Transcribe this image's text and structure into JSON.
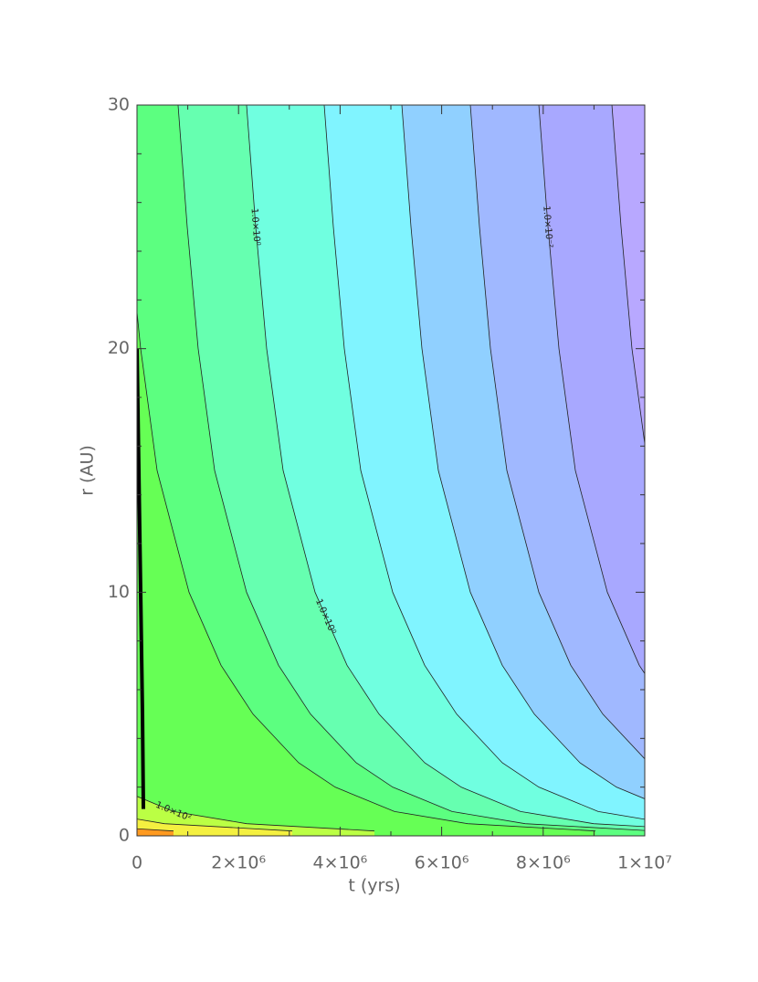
{
  "chart_data": {
    "type": "contour",
    "xlabel": "t (yrs)",
    "ylabel": "r (AU)",
    "xlim": [
      0,
      10000000
    ],
    "ylim": [
      0,
      30
    ],
    "xticks": [
      0,
      {
        "value": 2000000,
        "label": "2×10⁶"
      },
      {
        "value": 4000000,
        "label": "4×10⁶"
      },
      {
        "value": 6000000,
        "label": "6×10⁶"
      },
      {
        "value": 8000000,
        "label": "8×10⁶"
      },
      {
        "value": 10000000,
        "label": "1×10⁷"
      }
    ],
    "xminorticks": [
      1000000,
      3000000,
      5000000,
      7000000,
      9000000
    ],
    "yticks": [
      0,
      10,
      20,
      30
    ],
    "yminorticks": [
      2,
      4,
      6,
      8,
      12,
      14,
      16,
      18,
      22,
      24,
      26,
      28
    ],
    "line_color": "#222222",
    "fill_colors": [
      "#ff9a20",
      "#f4f040",
      "#bbff44",
      "#66ff55",
      "#5cff80",
      "#66ffb0",
      "#70ffe0",
      "#80f4ff",
      "#90d0ff",
      "#a0b8ff",
      "#a8a8ff",
      "#b8a8ff"
    ],
    "contours": [
      {
        "x": [
          0,
          719000
        ],
        "y": [
          0.29,
          0.2
        ]
      },
      {
        "x": [
          0,
          540000,
          3058000
        ],
        "y": [
          0.69,
          0.5,
          0.2
        ]
      },
      {
        "label": "1.0×10²",
        "x": [
          0,
          719000,
          2158000,
          4676000
        ],
        "y": [
          1.62,
          1,
          0.5,
          0.2
        ]
      },
      {
        "x": [
          0,
          72000,
          396000,
          1025000,
          1655000,
          2284000,
          3184000,
          3903000,
          5072000,
          6511000,
          9029000
        ],
        "y": [
          21.5,
          20,
          15,
          10,
          7,
          5,
          3,
          2,
          1,
          0.5,
          0.2
        ]
      },
      {
        "x": [
          809000,
          989000,
          1205000,
          1529000,
          2158000,
          2788000,
          3417000,
          4317000,
          5036000,
          6205000,
          7644000,
          10000000
        ],
        "y": [
          30,
          25,
          20,
          15,
          10,
          7,
          5,
          3,
          2,
          1,
          0.5,
          0.22
        ]
      },
      {
        "label": "1.0×10⁰",
        "x": [
          2158000,
          2338000,
          2554000,
          2878000,
          3507000,
          4137000,
          4766000,
          5666000,
          6385000,
          7554000,
          8993000,
          10000000
        ],
        "y": [
          30,
          25,
          20,
          15,
          10,
          7,
          5,
          3,
          2,
          1,
          0.5,
          0.38
        ]
      },
      {
        "x": [
          3687000,
          3867000,
          4083000,
          4407000,
          5036000,
          5666000,
          6295000,
          7194000,
          7914000,
          9083000,
          10000000
        ],
        "y": [
          30,
          25,
          20,
          15,
          10,
          7,
          5,
          3,
          2,
          1,
          0.68
        ]
      },
      {
        "x": [
          5216000,
          5396000,
          5612000,
          5935000,
          6565000,
          7194000,
          7824000,
          8723000,
          9443000,
          10000000
        ],
        "y": [
          30,
          25,
          20,
          15,
          10,
          7,
          5,
          3,
          2,
          1.52
        ]
      },
      {
        "x": [
          6565000,
          6745000,
          6961000,
          7284000,
          7914000,
          8543000,
          9173000,
          10000000
        ],
        "y": [
          30,
          25,
          20,
          15,
          10,
          7,
          5,
          3.16
        ]
      },
      {
        "label": "1.0×10⁻²",
        "x": [
          7914000,
          8094000,
          8310000,
          8633000,
          9263000,
          9892000,
          10000000
        ],
        "y": [
          30,
          25,
          20,
          15,
          10,
          7,
          6.66
        ]
      },
      {
        "x": [
          9353000,
          9533000,
          9748000,
          10000000
        ],
        "y": [
          30,
          25,
          20,
          16.1
        ]
      }
    ],
    "track": {
      "color": "#000000",
      "x": [
        0,
        36000,
        72000,
        108000,
        126000
      ],
      "y": [
        20,
        15,
        10,
        5,
        1.1
      ]
    }
  }
}
